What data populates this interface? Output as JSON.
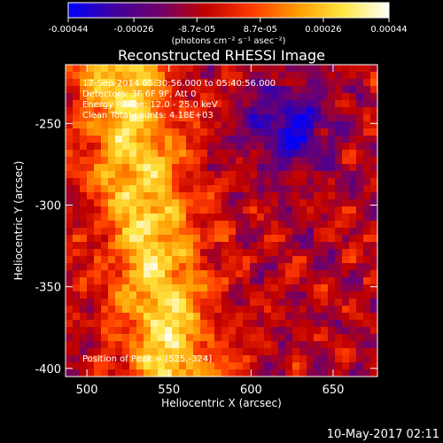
{
  "colorbar": {
    "tick_labels": [
      "-0.00044",
      "-0.00026",
      "-8.7e-05",
      "8.7e-05",
      "0.00026",
      "0.00044"
    ],
    "unit_label": "(photons cm⁻² s⁻¹ asec⁻²)",
    "range": [
      -0.00044,
      0.00044
    ],
    "colormap": [
      "#0000ff",
      "#40009f",
      "#70006a",
      "#c00000",
      "#ff3a00",
      "#ff9a00",
      "#ffe640",
      "#ffffff"
    ]
  },
  "footer": {
    "timestamp": "10-May-2017 02:11"
  },
  "chart_data": {
    "type": "heatmap",
    "title": "Reconstructed RHESSI Image",
    "xlabel": "Heliocentric X (arcsec)",
    "ylabel": "Heliocentric Y (arcsec)",
    "xlim": [
      487,
      677
    ],
    "ylim": [
      -405,
      -214
    ],
    "xticks": [
      500,
      550,
      600,
      650
    ],
    "yticks": [
      -250,
      -300,
      -350,
      -400
    ],
    "annotations": [
      "17-Sep-2014 05:30:56.000 to 05:40:56.000",
      "Detectors: 3F 6F 9F, Att 0",
      "Energy Range: 12.0 - 25.0 keV",
      "Clean     Total counts: 4.18E+03"
    ],
    "peak_label": "Position of Peak = [525,-324]",
    "peak": [
      525,
      -324
    ]
  }
}
